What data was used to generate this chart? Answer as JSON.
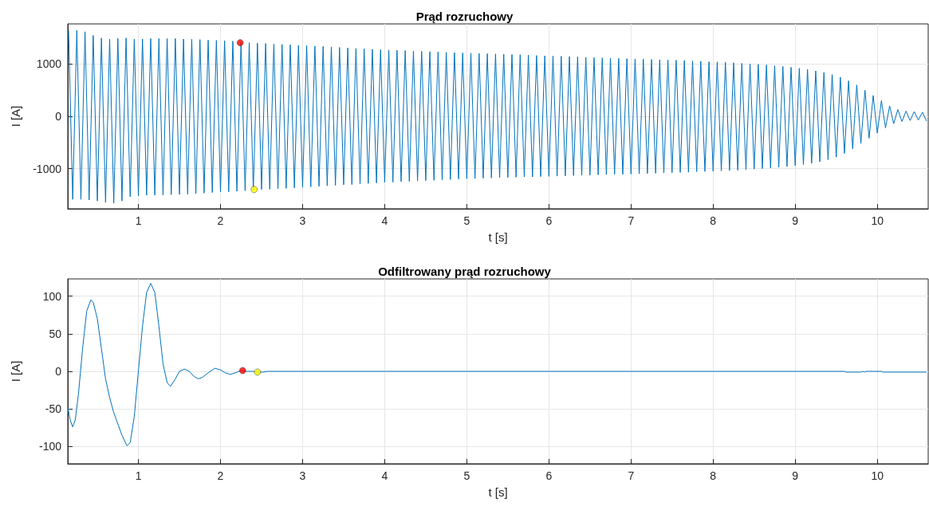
{
  "chart_data": [
    {
      "type": "line",
      "title": "Prąd rozruchowy",
      "xlabel": "t [s]",
      "ylabel": "I [A]",
      "xlim": [
        0.14,
        10.62
      ],
      "xticks": [
        1,
        2,
        3,
        4,
        5,
        6,
        7,
        8,
        9,
        10
      ],
      "ylim": [
        -1770,
        1770
      ],
      "yticks": [
        -1000,
        0,
        1000
      ],
      "grid": true,
      "series": [
        {
          "color": "#0072bd",
          "marker": "none",
          "x": [
            0.15,
            0.2,
            0.25,
            0.3,
            0.35,
            0.4,
            0.45,
            0.5,
            0.55,
            0.6,
            0.65,
            0.7,
            0.75,
            0.8,
            0.85,
            0.9,
            0.95,
            1.0,
            1.05,
            1.1,
            1.15,
            1.2,
            1.25,
            1.3,
            1.35,
            1.4,
            1.45,
            1.5,
            1.55,
            1.6,
            1.65,
            1.7,
            1.75,
            1.8,
            1.85,
            1.9,
            1.95,
            2.0,
            2.05,
            2.1,
            2.15,
            2.2,
            2.25,
            2.3,
            2.35,
            2.4,
            2.45,
            2.5,
            2.55,
            2.6,
            2.65,
            2.7,
            2.75,
            2.8,
            2.85,
            2.9,
            2.95,
            3.0,
            3.05,
            3.1,
            3.15,
            3.2,
            3.25,
            3.3,
            3.35,
            3.4,
            3.45,
            3.5,
            3.55,
            3.6,
            3.65,
            3.7,
            3.75,
            3.8,
            3.85,
            3.9,
            3.95,
            4.0,
            4.05,
            4.1,
            4.15,
            4.2,
            4.25,
            4.3,
            4.35,
            4.4,
            4.45,
            4.5,
            4.55,
            4.6,
            4.65,
            4.7,
            4.75,
            4.8,
            4.85,
            4.9,
            4.95,
            5.0,
            5.05,
            5.1,
            5.15,
            5.2,
            5.25,
            5.3,
            5.35,
            5.4,
            5.45,
            5.5,
            5.55,
            5.6,
            5.65,
            5.7,
            5.75,
            5.8,
            5.85,
            5.9,
            5.95,
            6.0,
            6.05,
            6.1,
            6.15,
            6.2,
            6.25,
            6.3,
            6.35,
            6.4,
            6.45,
            6.5,
            6.55,
            6.6,
            6.65,
            6.7,
            6.75,
            6.8,
            6.85,
            6.9,
            6.95,
            7.0,
            7.05,
            7.1,
            7.15,
            7.2,
            7.25,
            7.3,
            7.35,
            7.4,
            7.45,
            7.5,
            7.55,
            7.6,
            7.65,
            7.7,
            7.75,
            7.8,
            7.85,
            7.9,
            7.95,
            8.0,
            8.05,
            8.1,
            8.15,
            8.2,
            8.25,
            8.3,
            8.35,
            8.4,
            8.45,
            8.5,
            8.55,
            8.6,
            8.65,
            8.7,
            8.75,
            8.8,
            8.85,
            8.9,
            8.95,
            9.0,
            9.05,
            9.1,
            9.15,
            9.2,
            9.25,
            9.3,
            9.35,
            9.4,
            9.45,
            9.5,
            9.55,
            9.6,
            9.65,
            9.7,
            9.75,
            9.8,
            9.85,
            9.9,
            9.95,
            10.0,
            10.05,
            10.1,
            10.15,
            10.2,
            10.25,
            10.3,
            10.35,
            10.4,
            10.45,
            10.5,
            10.55,
            10.6
          ],
          "values": [
            1650,
            -1590,
            1645,
            -1590,
            1620,
            -1600,
            1550,
            -1620,
            1500,
            -1650,
            1480,
            -1660,
            1490,
            -1620,
            1500,
            -1540,
            1480,
            -1520,
            1480,
            -1510,
            1490,
            -1510,
            1490,
            -1505,
            1490,
            -1500,
            1490,
            -1495,
            1480,
            -1490,
            1475,
            -1480,
            1470,
            -1470,
            1460,
            -1460,
            1455,
            -1450,
            1450,
            -1445,
            1440,
            -1435,
            1420,
            -1425,
            1410,
            -1415,
            1400,
            -1400,
            1395,
            -1395,
            1385,
            -1385,
            1375,
            -1380,
            1370,
            -1370,
            1360,
            -1360,
            1355,
            -1350,
            1345,
            -1340,
            1340,
            -1330,
            1330,
            -1320,
            1320,
            -1310,
            1310,
            -1305,
            1300,
            -1295,
            1295,
            -1285,
            1285,
            -1275,
            1275,
            -1265,
            1270,
            -1260,
            1265,
            -1250,
            1260,
            -1245,
            1250,
            -1235,
            1245,
            -1230,
            1240,
            -1225,
            1235,
            -1215,
            1225,
            -1210,
            1220,
            -1200,
            1215,
            -1195,
            1210,
            -1190,
            1205,
            -1185,
            1200,
            -1180,
            1195,
            -1175,
            1190,
            -1170,
            1185,
            -1165,
            1180,
            -1160,
            1175,
            -1160,
            1165,
            -1155,
            1160,
            -1150,
            1155,
            -1145,
            1150,
            -1140,
            1145,
            -1135,
            1140,
            -1130,
            1130,
            -1125,
            1125,
            -1120,
            1120,
            -1115,
            1115,
            -1110,
            1110,
            -1110,
            1105,
            -1105,
            1100,
            -1100,
            1095,
            -1095,
            1090,
            -1090,
            1085,
            -1085,
            1080,
            -1080,
            1075,
            -1075,
            1070,
            -1070,
            1060,
            -1060,
            1055,
            -1055,
            1045,
            -1050,
            1040,
            -1045,
            1035,
            -1035,
            1025,
            -1030,
            1015,
            -1020,
            1005,
            -1010,
            995,
            -1000,
            985,
            -990,
            970,
            -975,
            955,
            -960,
            940,
            -945,
            920,
            -925,
            900,
            -900,
            870,
            -870,
            840,
            -830,
            800,
            -780,
            750,
            -710,
            680,
            -620,
            600,
            -520,
            500,
            -420,
            400,
            -320,
            300,
            -220,
            200,
            -140,
            130,
            -100,
            100,
            -80,
            90,
            -70,
            80,
            -90
          ]
        },
        {
          "type": "scatter",
          "color": "#ff0000",
          "marker": "circle",
          "x": [
            2.24
          ],
          "values": [
            1410
          ]
        },
        {
          "type": "scatter",
          "color": "#ffff00",
          "marker": "circle",
          "x": [
            2.41
          ],
          "values": [
            -1400
          ]
        }
      ]
    },
    {
      "type": "line",
      "title": "Odfiltrowany prąd rozruchowy",
      "xlabel": "t [s]",
      "ylabel": "I [A]",
      "xlim": [
        0.14,
        10.62
      ],
      "xticks": [
        1,
        2,
        3,
        4,
        5,
        6,
        7,
        8,
        9,
        10
      ],
      "ylim": [
        -123,
        123
      ],
      "yticks": [
        -100,
        -50,
        0,
        50,
        100
      ],
      "grid": true,
      "series": [
        {
          "color": "#0072bd",
          "marker": "none",
          "x": [
            0.14,
            0.17,
            0.2,
            0.23,
            0.27,
            0.32,
            0.37,
            0.42,
            0.45,
            0.5,
            0.55,
            0.6,
            0.65,
            0.7,
            0.75,
            0.8,
            0.86,
            0.9,
            0.95,
            1.0,
            1.05,
            1.1,
            1.15,
            1.2,
            1.25,
            1.3,
            1.35,
            1.39,
            1.45,
            1.5,
            1.56,
            1.62,
            1.68,
            1.73,
            1.78,
            1.85,
            1.93,
            2.0,
            2.06,
            2.12,
            2.18,
            2.25,
            2.32,
            2.4,
            2.45,
            2.52,
            2.58,
            3,
            4,
            5,
            6,
            7,
            8,
            9,
            9.6,
            9.62,
            9.8,
            9.82,
            9.85,
            9.86,
            10.05,
            10.07,
            10.6
          ],
          "values": [
            -48,
            -65,
            -74,
            -65,
            -30,
            30,
            80,
            95,
            92,
            70,
            30,
            -10,
            -35,
            -55,
            -70,
            -85,
            -99,
            -95,
            -60,
            0,
            60,
            105,
            117,
            105,
            60,
            10,
            -15,
            -20,
            -10,
            0,
            3,
            0,
            -7,
            -10,
            -8,
            -2,
            4,
            2,
            -2,
            -4,
            -2,
            1,
            0,
            0,
            -1,
            -1,
            0,
            0,
            0,
            0,
            0,
            0,
            0,
            0,
            0,
            -1,
            -1,
            0,
            -1,
            0,
            0,
            -1,
            -1
          ]
        },
        {
          "type": "scatter",
          "color": "#ff0000",
          "marker": "circle",
          "x": [
            2.27
          ],
          "values": [
            1
          ]
        },
        {
          "type": "scatter",
          "color": "#ffff00",
          "marker": "circle",
          "x": [
            2.45
          ],
          "values": [
            -1
          ]
        }
      ]
    }
  ]
}
